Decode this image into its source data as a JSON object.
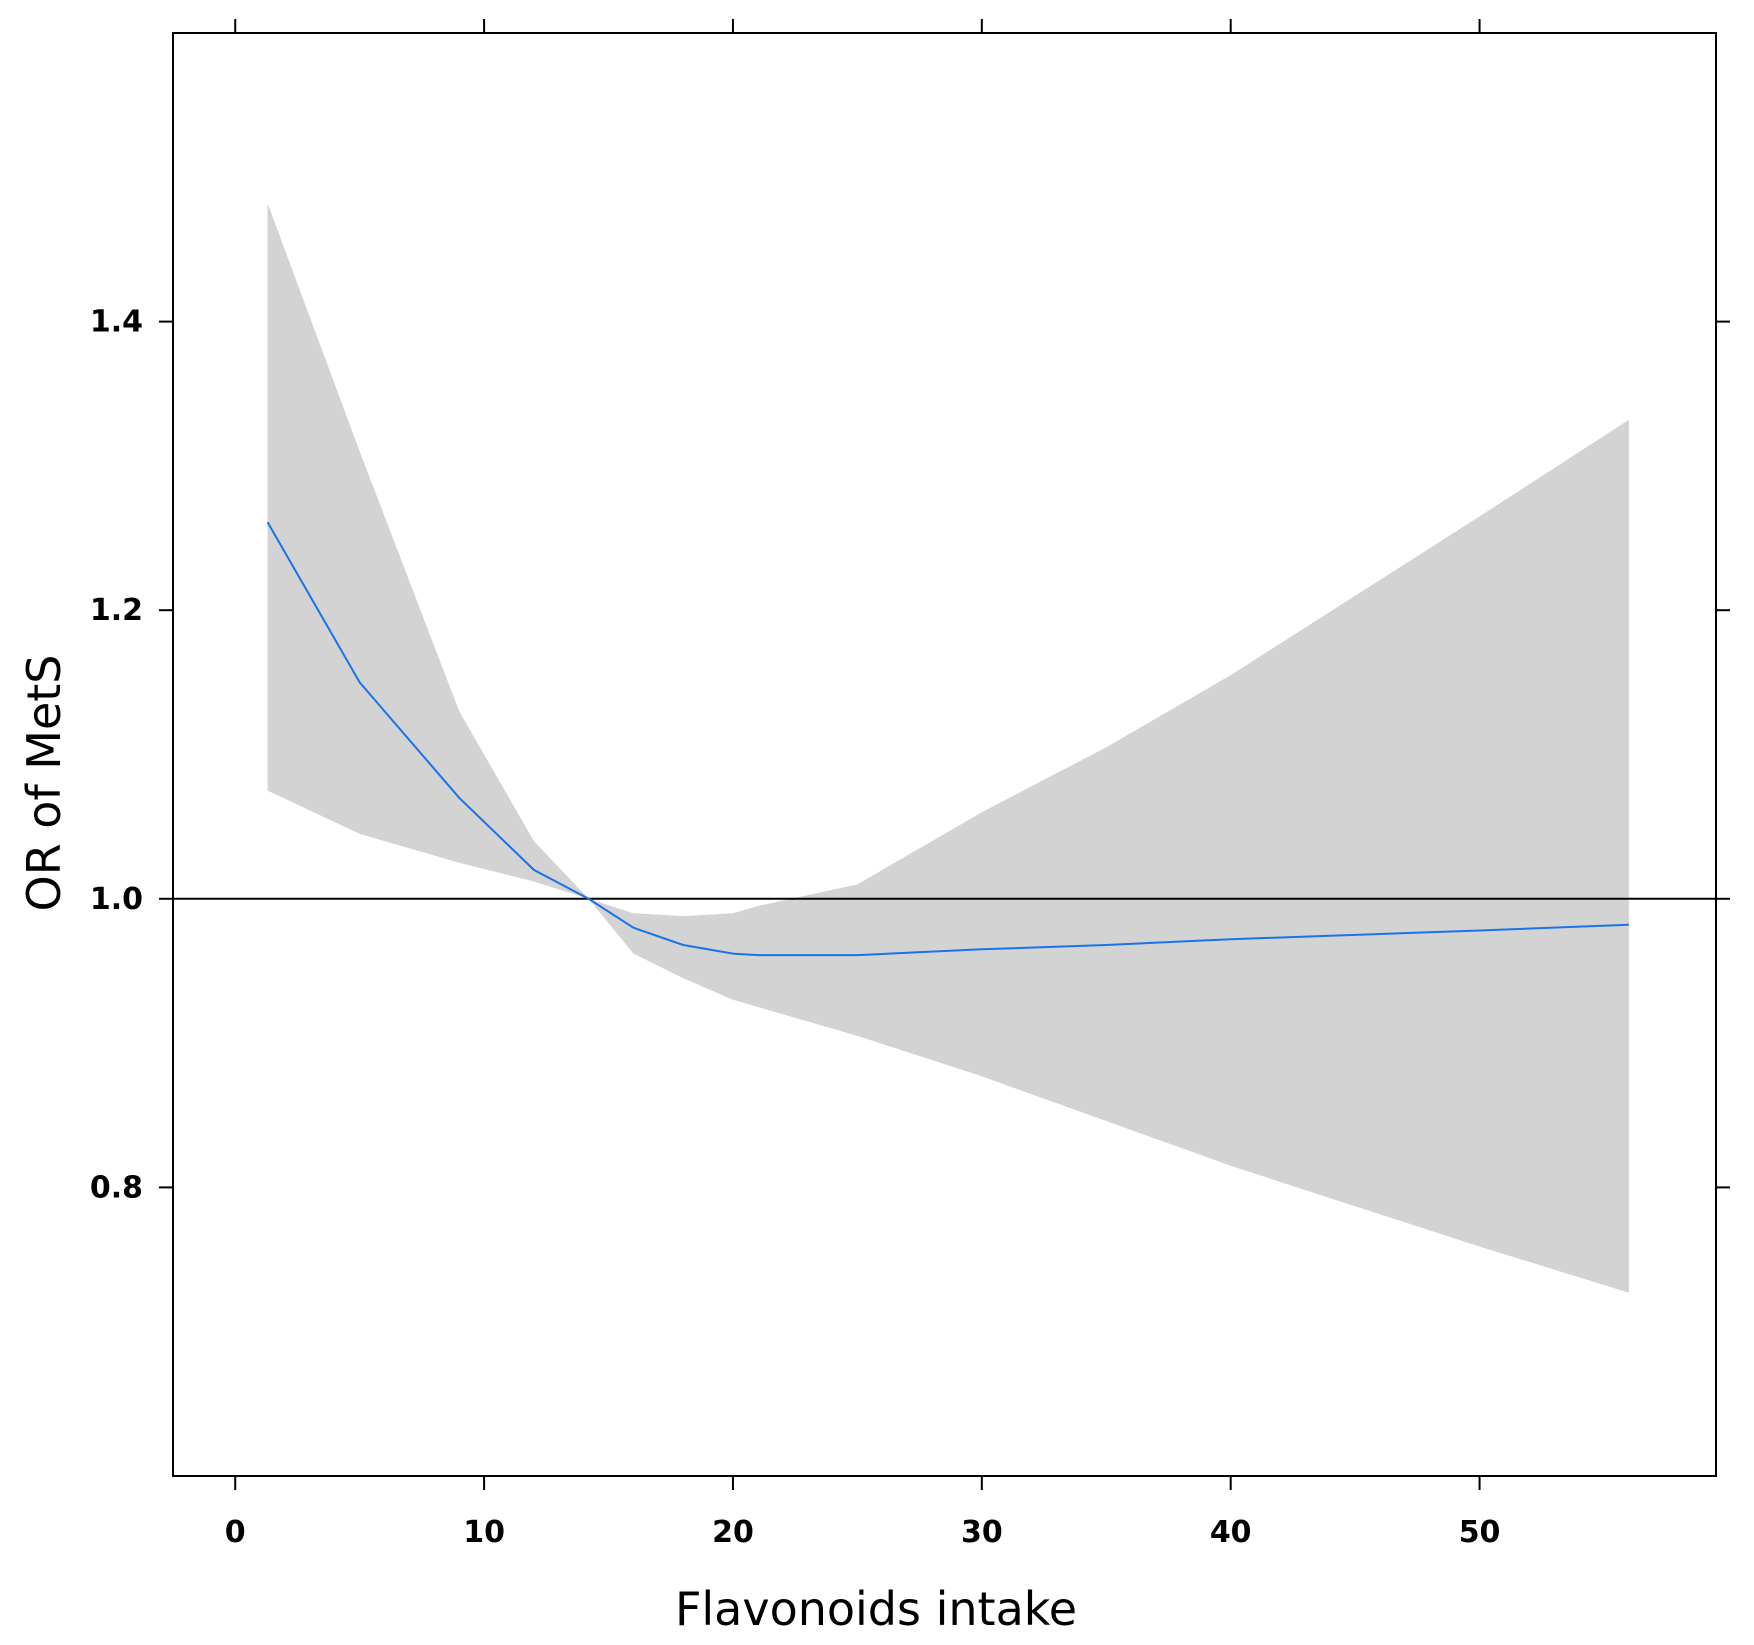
{
  "chart_data": {
    "type": "line",
    "title": "",
    "xlabel": "Flavonoids intake",
    "ylabel": "OR of MetS",
    "xlim": [
      -2.5,
      59.5
    ],
    "ylim": [
      0.6,
      1.6
    ],
    "xticks": [
      0,
      10,
      20,
      30,
      40,
      50
    ],
    "xtick_labels": [
      "0",
      "10",
      "20",
      "30",
      "40",
      "50"
    ],
    "yticks": [
      0.8,
      1.0,
      1.2,
      1.4
    ],
    "ytick_labels": [
      "0.8",
      "1.0",
      "1.2",
      "1.4"
    ],
    "reference_line": 1.0,
    "grid": false,
    "legend": "none",
    "colors": {
      "curve": "#1a73e8",
      "band": "#d3d3d3",
      "axis": "#000000"
    },
    "series": [
      {
        "x": [
          1.3,
          5,
          9,
          12,
          14.2,
          16,
          18,
          20,
          21,
          25,
          30,
          35,
          40,
          45,
          50,
          56
        ],
        "y": [
          1.261,
          1.15,
          1.07,
          1.02,
          1.0,
          0.98,
          0.968,
          0.962,
          0.961,
          0.961,
          0.965,
          0.968,
          0.972,
          0.975,
          0.978,
          0.982
        ],
        "lower": [
          1.075,
          1.045,
          1.025,
          1.012,
          1.0,
          0.962,
          0.945,
          0.93,
          0.925,
          0.905,
          0.877,
          0.846,
          0.815,
          0.787,
          0.759,
          0.727
        ],
        "upper": [
          1.482,
          1.31,
          1.13,
          1.04,
          1.0,
          0.99,
          0.988,
          0.99,
          0.995,
          1.01,
          1.06,
          1.105,
          1.155,
          1.21,
          1.265,
          1.332
        ]
      }
    ]
  }
}
